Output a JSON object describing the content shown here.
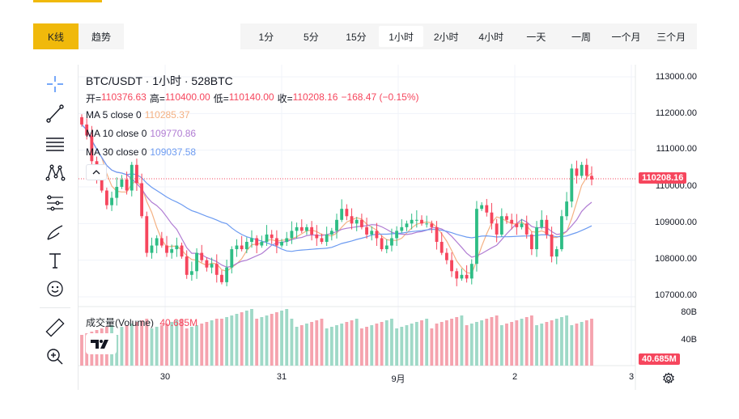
{
  "view_tabs": [
    {
      "label": "K线",
      "active": true
    },
    {
      "label": "趋势",
      "active": false
    }
  ],
  "intervals": [
    {
      "label": "1分",
      "active": false
    },
    {
      "label": "5分",
      "active": false
    },
    {
      "label": "15分",
      "active": false
    },
    {
      "label": "1小时",
      "active": true
    },
    {
      "label": "2小时",
      "active": false
    },
    {
      "label": "4小时",
      "active": false
    },
    {
      "label": "一天",
      "active": false
    },
    {
      "label": "一周",
      "active": false
    },
    {
      "label": "一个月",
      "active": false
    },
    {
      "label": "三个月",
      "active": false
    }
  ],
  "toolbar_icons": [
    "crosshair-icon",
    "trend-line-icon",
    "horizontal-lines-icon",
    "pattern-icon",
    "measure-lines-icon",
    "brush-icon",
    "text-icon",
    "emoji-icon",
    "ruler-icon",
    "zoom-in-icon"
  ],
  "legend": {
    "title": "BTC/USDT · 1小时 · 528BTC",
    "open_label": "开=",
    "open": "110376.63",
    "high_label": "高=",
    "high": "110400.00",
    "low_label": "低=",
    "low": "110140.00",
    "close_label": "收=",
    "close": "110208.16",
    "change": "−168.47 (−0.15%)",
    "ma5_label": "MA 5 close 0",
    "ma5_value": "110285.37",
    "ma10_label": "MA 10 close 0",
    "ma10_value": "109770.86",
    "ma30_label": "MA 30 close 0",
    "ma30_value": "109037.58"
  },
  "volume": {
    "label": "成交量(Volume)",
    "value": "40.685M",
    "axis_ticks": [
      "80B",
      "40B"
    ],
    "current_tag": "40.685M"
  },
  "price_axis": {
    "ticks": [
      "113000.00",
      "112000.00",
      "111000.00",
      "110000.00",
      "109000.00",
      "108000.00",
      "107000.00"
    ],
    "current_price": "110208.16"
  },
  "time_axis": [
    "30",
    "31",
    "9月",
    "2",
    "3"
  ],
  "colors": {
    "up": "#2ebd85",
    "down": "#f6465d",
    "ma5": "#f4b183",
    "ma10": "#b07cd3",
    "ma30": "#6c9bf1",
    "accent": "#f0b90b"
  },
  "chart_data": {
    "type": "candlestick",
    "symbol": "BTC/USDT",
    "interval": "1小时",
    "ylim": [
      106700,
      113300
    ],
    "close": [
      111700,
      111400,
      110700,
      110300,
      109900,
      109500,
      109700,
      110000,
      110200,
      109900,
      110600,
      110100,
      109200,
      108200,
      108400,
      108600,
      108400,
      108200,
      108300,
      108400,
      108100,
      107600,
      107700,
      108200,
      108000,
      107800,
      107900,
      107600,
      107400,
      107800,
      108300,
      108400,
      108300,
      108500,
      108600,
      108400,
      108500,
      108700,
      108600,
      108400,
      108500,
      108600,
      108800,
      108900,
      108800,
      108900,
      108700,
      108600,
      108500,
      108700,
      108800,
      109100,
      109400,
      109200,
      109000,
      109100,
      108900,
      108700,
      108800,
      108600,
      108300,
      108400,
      108600,
      108800,
      108900,
      109000,
      109100,
      109100,
      109000,
      109000,
      108900,
      108500,
      108200,
      108000,
      107700,
      107500,
      107600,
      107500,
      107900,
      109400,
      109500,
      109300,
      109000,
      108700,
      109200,
      109100,
      109000,
      108900,
      109000,
      108700,
      108300,
      108900,
      109100,
      108700,
      108100,
      108300,
      109200,
      109600,
      110500,
      110300,
      110600,
      110300,
      110200
    ]
  }
}
